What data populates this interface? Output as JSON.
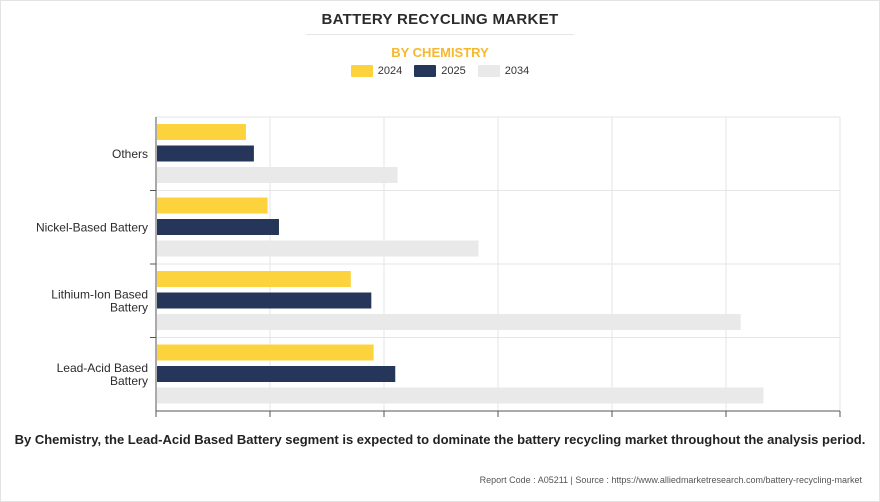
{
  "header": {
    "title": "BATTERY RECYCLING MARKET",
    "subtitle": "BY CHEMISTRY"
  },
  "chart_data": {
    "type": "bar",
    "orientation": "horizontal",
    "categories": [
      [
        "Others"
      ],
      [
        "Nickel-Based Battery"
      ],
      [
        "Lithium-Ion Based",
        "Battery"
      ],
      [
        "Lead-Acid Based",
        "Battery"
      ]
    ],
    "series": [
      {
        "name": "2024",
        "color": "#fdd33d",
        "values": [
          0.78,
          0.97,
          1.7,
          1.9
        ]
      },
      {
        "name": "2025",
        "color": "#26365a",
        "values": [
          0.85,
          1.07,
          1.88,
          2.09
        ]
      },
      {
        "name": "2034",
        "color": "#e9e9e9",
        "values": [
          2.11,
          2.82,
          5.12,
          5.32
        ]
      }
    ],
    "xlim": [
      0,
      6
    ],
    "grid": true,
    "legend_position": "top-center",
    "tick_labels_shown": false
  },
  "caption": "By Chemistry, the Lead-Acid Based Battery segment is expected to dominate the battery recycling market throughout the analysis period.",
  "footer": "Report Code : A05211  |  Source : https://www.alliedmarketresearch.com/battery-recycling-market"
}
